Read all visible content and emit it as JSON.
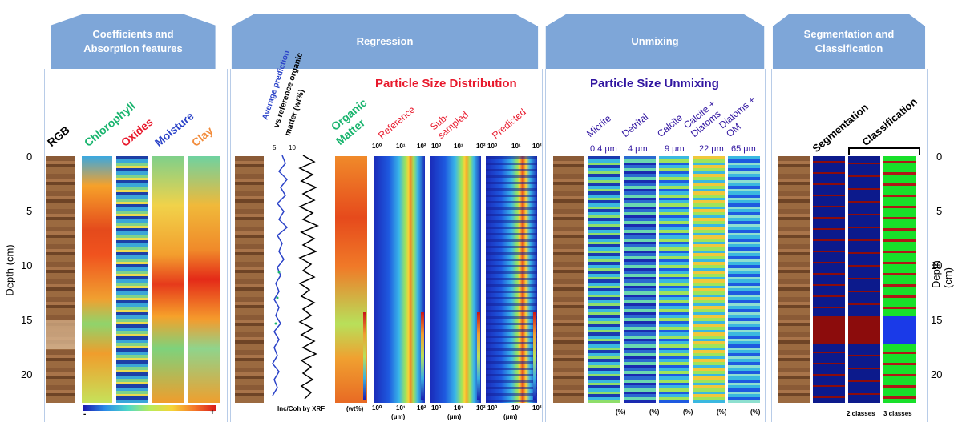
{
  "panels": [
    {
      "title": "Coefficients and\nAbsorption features"
    },
    {
      "title": "Regression"
    },
    {
      "title": "Unmixing"
    },
    {
      "title": "Segmentation and\nClassification"
    }
  ],
  "axes": {
    "left_label": "Depth (cm)",
    "right_label": "Depth (cm)",
    "depth_ticks": [
      "0",
      "5",
      "10",
      "15",
      "20"
    ]
  },
  "coefficients": {
    "columns": [
      "RGB",
      "Chlorophyll",
      "Oxides",
      "Moisture",
      "Clay"
    ],
    "column_colors": [
      "#000000",
      "#19b46e",
      "#e8192c",
      "#2b43c8",
      "#f28c3c"
    ],
    "scale_min": "-",
    "scale_max": "+"
  },
  "regression": {
    "avg_prediction_label": [
      "Average prediction",
      "vs reference organic",
      "matter (wt%)"
    ],
    "avg_ticks": [
      "5",
      "10"
    ],
    "xrf_label": "Inc/Coh by XRF",
    "organic_matter_label": [
      "Organic",
      "Matter"
    ],
    "organic_unit": "(wt%)",
    "psd_title": "Particle Size Distribution",
    "psd_columns": [
      "Reference",
      "Sub-\nsampled",
      "Predicted"
    ],
    "psd_axis_ticks": [
      "10⁰",
      "10¹",
      "10²"
    ],
    "psd_unit": "(μm)"
  },
  "unmixing": {
    "title": "Particle Size Unmixing",
    "columns": [
      {
        "name": "Micrite",
        "size": "0.4 μm"
      },
      {
        "name": "Detrital",
        "size": "4 μm"
      },
      {
        "name": "Calcite",
        "size": "9 μm"
      },
      {
        "name": "Calcite +\nDiatoms",
        "size": "22 μm"
      },
      {
        "name": "Diatoms +\nOM",
        "size": "65 μm"
      }
    ],
    "unit": "(%)"
  },
  "segmentation": {
    "seg_label": "Segmentation",
    "cls_label": "Classification",
    "classes_2": "2 classes",
    "classes_3": "3 classes"
  }
}
